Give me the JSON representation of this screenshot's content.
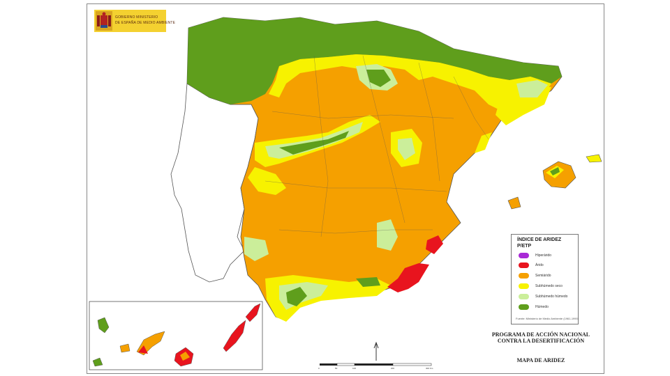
{
  "header": {
    "logo_line1": "GOBIERNO  MINISTERIO",
    "logo_line2": "DE ESPAÑA  DE MEDIO AMBIENTE"
  },
  "legend": {
    "title": "ÍNDICE DE ARIDEZ",
    "subtitle": "P/ETP",
    "items": [
      {
        "label": "Hiperárido",
        "color": "#a829d6"
      },
      {
        "label": "Árido",
        "color": "#e8141e"
      },
      {
        "label": "Semiárido",
        "color": "#f5a000"
      },
      {
        "label": "Subhúmedo seco",
        "color": "#f7f200"
      },
      {
        "label": "Subhúmedo húmedo",
        "color": "#cbee9a"
      },
      {
        "label": "Húmedo",
        "color": "#5f9e1c"
      }
    ],
    "source": "Fuente: Ministerio de Medio Ambiente (1961-1990)"
  },
  "footer": {
    "program_title_line1": "PROGRAMA DE ACCIÓN NACIONAL",
    "program_title_line2": "CONTRA LA DESERTIFICACIÓN",
    "map_title": "MAPA DE ARIDEZ"
  },
  "scale_bar": {
    "labels": [
      "0",
      "50",
      "100",
      "200",
      "300 Km"
    ]
  },
  "map": {
    "colors": {
      "semiarid": "#f5a000",
      "humid": "#5f9e1c",
      "dry_subhumid": "#f7f200",
      "moist_subhumid": "#cbee9a",
      "arid": "#e8141e",
      "border": "#555555"
    }
  }
}
